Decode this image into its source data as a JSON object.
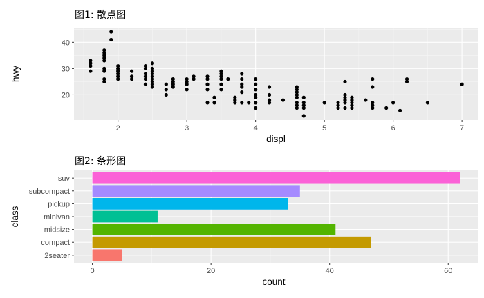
{
  "colors": {
    "panel_bg": "#ebebeb",
    "grid_major": "#ffffff",
    "grid_minor": "#f5f5f5",
    "tick": "#333333",
    "point": "#000000"
  },
  "chart_data": [
    {
      "type": "scatter",
      "title": "图1: 散点图",
      "xlabel": "displ",
      "ylabel": "hwy",
      "xlim": [
        1.36,
        7.24
      ],
      "ylim": [
        10.4,
        45.6
      ],
      "xticks": [
        2,
        3,
        4,
        5,
        6,
        7
      ],
      "yticks": [
        20,
        30,
        40
      ],
      "grid": true,
      "points": [
        [
          1.6,
          29
        ],
        [
          1.6,
          31
        ],
        [
          1.6,
          32
        ],
        [
          1.6,
          33
        ],
        [
          1.8,
          25
        ],
        [
          1.8,
          26
        ],
        [
          1.8,
          29
        ],
        [
          1.8,
          30
        ],
        [
          1.8,
          33
        ],
        [
          1.8,
          34
        ],
        [
          1.8,
          35
        ],
        [
          1.8,
          36
        ],
        [
          1.8,
          37
        ],
        [
          1.9,
          41
        ],
        [
          1.9,
          44
        ],
        [
          2.0,
          26
        ],
        [
          2.0,
          27
        ],
        [
          2.0,
          28
        ],
        [
          2.0,
          29
        ],
        [
          2.0,
          30
        ],
        [
          2.0,
          31
        ],
        [
          2.2,
          26
        ],
        [
          2.2,
          27
        ],
        [
          2.2,
          29
        ],
        [
          2.4,
          24
        ],
        [
          2.4,
          26
        ],
        [
          2.4,
          27
        ],
        [
          2.4,
          28
        ],
        [
          2.4,
          30
        ],
        [
          2.4,
          31
        ],
        [
          2.5,
          23
        ],
        [
          2.5,
          24
        ],
        [
          2.5,
          25
        ],
        [
          2.5,
          26
        ],
        [
          2.5,
          27
        ],
        [
          2.5,
          28
        ],
        [
          2.5,
          29
        ],
        [
          2.5,
          30
        ],
        [
          2.5,
          32
        ],
        [
          2.7,
          20
        ],
        [
          2.7,
          22
        ],
        [
          2.7,
          24
        ],
        [
          2.8,
          23
        ],
        [
          2.8,
          24
        ],
        [
          2.8,
          25
        ],
        [
          2.8,
          26
        ],
        [
          3.0,
          22
        ],
        [
          3.0,
          24
        ],
        [
          3.0,
          25
        ],
        [
          3.0,
          26
        ],
        [
          3.1,
          26
        ],
        [
          3.1,
          27
        ],
        [
          3.3,
          17
        ],
        [
          3.3,
          22
        ],
        [
          3.3,
          24
        ],
        [
          3.3,
          26
        ],
        [
          3.3,
          27
        ],
        [
          3.4,
          17
        ],
        [
          3.4,
          19
        ],
        [
          3.5,
          22
        ],
        [
          3.5,
          24
        ],
        [
          3.5,
          26
        ],
        [
          3.5,
          27
        ],
        [
          3.5,
          28
        ],
        [
          3.5,
          29
        ],
        [
          3.6,
          26
        ],
        [
          3.7,
          17
        ],
        [
          3.7,
          18
        ],
        [
          3.7,
          19
        ],
        [
          3.8,
          17
        ],
        [
          3.8,
          21
        ],
        [
          3.8,
          23
        ],
        [
          3.8,
          24
        ],
        [
          3.8,
          26
        ],
        [
          3.8,
          28
        ],
        [
          3.9,
          17
        ],
        [
          4.0,
          15
        ],
        [
          4.0,
          17
        ],
        [
          4.0,
          19
        ],
        [
          4.0,
          20
        ],
        [
          4.0,
          22
        ],
        [
          4.0,
          24
        ],
        [
          4.0,
          26
        ],
        [
          4.2,
          17
        ],
        [
          4.2,
          18
        ],
        [
          4.2,
          20
        ],
        [
          4.2,
          23
        ],
        [
          4.4,
          18
        ],
        [
          4.6,
          15
        ],
        [
          4.6,
          16
        ],
        [
          4.6,
          17
        ],
        [
          4.6,
          19
        ],
        [
          4.6,
          20
        ],
        [
          4.6,
          21
        ],
        [
          4.6,
          22
        ],
        [
          4.6,
          23
        ],
        [
          4.7,
          12
        ],
        [
          4.7,
          15
        ],
        [
          4.7,
          16
        ],
        [
          4.7,
          17
        ],
        [
          4.7,
          19
        ],
        [
          5.0,
          17
        ],
        [
          5.2,
          15
        ],
        [
          5.2,
          16
        ],
        [
          5.2,
          17
        ],
        [
          5.3,
          15
        ],
        [
          5.3,
          17
        ],
        [
          5.3,
          18
        ],
        [
          5.3,
          19
        ],
        [
          5.3,
          20
        ],
        [
          5.3,
          25
        ],
        [
          5.4,
          15
        ],
        [
          5.4,
          16
        ],
        [
          5.4,
          17
        ],
        [
          5.4,
          18
        ],
        [
          5.4,
          19
        ],
        [
          5.6,
          18
        ],
        [
          5.7,
          15
        ],
        [
          5.7,
          16
        ],
        [
          5.7,
          17
        ],
        [
          5.7,
          23
        ],
        [
          5.7,
          26
        ],
        [
          5.9,
          15
        ],
        [
          6.0,
          17
        ],
        [
          6.1,
          14
        ],
        [
          6.2,
          25
        ],
        [
          6.2,
          26
        ],
        [
          6.5,
          17
        ],
        [
          7.0,
          24
        ]
      ]
    },
    {
      "type": "bar",
      "orientation": "horizontal",
      "title": "图2: 条形图",
      "xlabel": "count",
      "ylabel": "class",
      "xlim": [
        -3.1,
        65.1
      ],
      "xticks": [
        0,
        20,
        40,
        60
      ],
      "grid": true,
      "categories": [
        "2seater",
        "compact",
        "midsize",
        "minivan",
        "pickup",
        "subcompact",
        "suv"
      ],
      "values": [
        5,
        47,
        41,
        11,
        33,
        35,
        62
      ],
      "colors": [
        "#F8766D",
        "#C49A00",
        "#53B400",
        "#00C094",
        "#00B6EB",
        "#A58AFF",
        "#FB61D7"
      ]
    }
  ]
}
